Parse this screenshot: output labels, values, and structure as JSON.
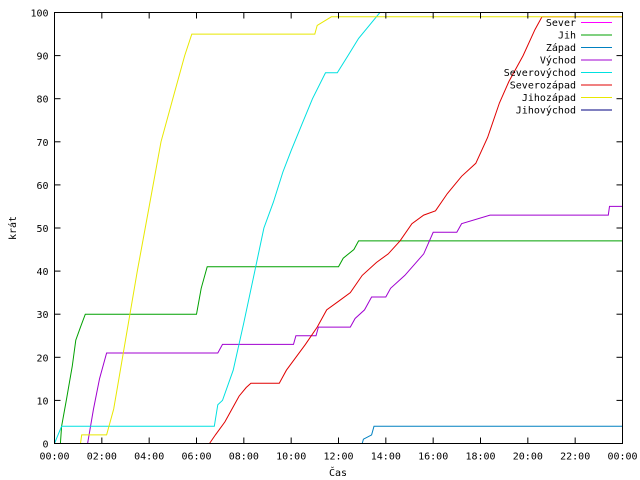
{
  "chart_data": {
    "type": "line",
    "title": "",
    "xlabel": "Čas",
    "ylabel": "krát",
    "xlim": [
      0,
      24
    ],
    "ylim": [
      0,
      100
    ],
    "x_ticks": [
      {
        "value": 0,
        "label": "00:00"
      },
      {
        "value": 2,
        "label": "02:00"
      },
      {
        "value": 4,
        "label": "04:00"
      },
      {
        "value": 6,
        "label": "06:00"
      },
      {
        "value": 8,
        "label": "08:00"
      },
      {
        "value": 10,
        "label": "10:00"
      },
      {
        "value": 12,
        "label": "12:00"
      },
      {
        "value": 14,
        "label": "14:00"
      },
      {
        "value": 16,
        "label": "16:00"
      },
      {
        "value": 18,
        "label": "18:00"
      },
      {
        "value": 20,
        "label": "20:00"
      },
      {
        "value": 22,
        "label": "22:00"
      },
      {
        "value": 24,
        "label": "00:00"
      }
    ],
    "y_ticks": [
      0,
      10,
      20,
      30,
      40,
      50,
      60,
      70,
      80,
      90,
      100
    ],
    "grid": false,
    "legend_position": "top-right",
    "series": [
      {
        "name": "Sever",
        "color": "#ff00ff",
        "points": []
      },
      {
        "name": "Jih",
        "color": "#00a000",
        "points": [
          [
            0,
            0
          ],
          [
            0.25,
            0
          ],
          [
            0.3,
            4
          ],
          [
            0.5,
            10
          ],
          [
            0.75,
            18
          ],
          [
            0.9,
            24
          ],
          [
            1.1,
            27
          ],
          [
            1.3,
            30
          ],
          [
            6,
            30
          ],
          [
            6.2,
            36
          ],
          [
            6.45,
            41
          ],
          [
            12,
            41
          ],
          [
            12.2,
            43
          ],
          [
            12.65,
            45
          ],
          [
            12.85,
            47
          ],
          [
            24,
            47
          ]
        ]
      },
      {
        "name": "Západ",
        "color": "#0080c0",
        "points": [
          [
            13,
            0
          ],
          [
            13.05,
            1
          ],
          [
            13.4,
            2
          ],
          [
            13.5,
            4
          ],
          [
            24,
            4
          ]
        ]
      },
      {
        "name": "Východ",
        "color": "#a000d0",
        "points": [
          [
            1.4,
            0
          ],
          [
            1.65,
            8
          ],
          [
            1.9,
            15
          ],
          [
            2.2,
            21
          ],
          [
            6.9,
            21
          ],
          [
            7.1,
            23
          ],
          [
            10.1,
            23
          ],
          [
            10.2,
            25
          ],
          [
            11.05,
            25
          ],
          [
            11.15,
            27
          ],
          [
            12.5,
            27
          ],
          [
            12.7,
            29
          ],
          [
            13.1,
            31
          ],
          [
            13.4,
            34
          ],
          [
            14,
            34
          ],
          [
            14.2,
            36
          ],
          [
            14.8,
            39
          ],
          [
            15.6,
            44
          ],
          [
            16,
            49
          ],
          [
            17,
            49
          ],
          [
            17.2,
            51
          ],
          [
            18.4,
            53
          ],
          [
            23.4,
            53
          ],
          [
            23.45,
            55
          ],
          [
            24,
            55
          ]
        ]
      },
      {
        "name": "Severovýchod",
        "color": "#00e0e0",
        "points": [
          [
            0,
            0
          ],
          [
            0.15,
            2
          ],
          [
            0.3,
            4
          ],
          [
            6.75,
            4
          ],
          [
            6.9,
            9
          ],
          [
            7.1,
            10
          ],
          [
            7.55,
            17
          ],
          [
            8,
            28
          ],
          [
            8.5,
            41
          ],
          [
            8.85,
            50
          ],
          [
            9.25,
            56
          ],
          [
            9.65,
            63
          ],
          [
            10,
            68
          ],
          [
            10.45,
            74
          ],
          [
            10.9,
            80
          ],
          [
            11.45,
            86
          ],
          [
            11.95,
            86
          ],
          [
            12.4,
            90
          ],
          [
            12.85,
            94
          ],
          [
            13.3,
            97
          ],
          [
            13.75,
            100
          ],
          [
            24,
            100
          ]
        ]
      },
      {
        "name": "Severozápad",
        "color": "#e00000",
        "points": [
          [
            6.55,
            0
          ],
          [
            6.8,
            2
          ],
          [
            7.2,
            5
          ],
          [
            7.5,
            8
          ],
          [
            7.8,
            11
          ],
          [
            8.1,
            13
          ],
          [
            8.3,
            14
          ],
          [
            9.5,
            14
          ],
          [
            9.8,
            17
          ],
          [
            10.2,
            20
          ],
          [
            10.6,
            23
          ],
          [
            11.1,
            27
          ],
          [
            11.5,
            31
          ],
          [
            12,
            33
          ],
          [
            12.5,
            35
          ],
          [
            13,
            39
          ],
          [
            13.6,
            42
          ],
          [
            14.1,
            44
          ],
          [
            14.6,
            47
          ],
          [
            15.1,
            51
          ],
          [
            15.6,
            53
          ],
          [
            16.1,
            54
          ],
          [
            16.6,
            58
          ],
          [
            17.2,
            62
          ],
          [
            17.8,
            65
          ],
          [
            18.3,
            71
          ],
          [
            18.8,
            79
          ],
          [
            19.2,
            84
          ],
          [
            19.8,
            90
          ],
          [
            20.3,
            96
          ],
          [
            20.6,
            99
          ],
          [
            24,
            99
          ]
        ]
      },
      {
        "name": "Jihozápad",
        "color": "#e8e800",
        "points": [
          [
            1.1,
            0
          ],
          [
            1.15,
            2
          ],
          [
            2.2,
            2
          ],
          [
            2.5,
            8
          ],
          [
            3,
            24
          ],
          [
            3.5,
            40
          ],
          [
            4,
            55
          ],
          [
            4.5,
            70
          ],
          [
            5,
            80
          ],
          [
            5.5,
            90
          ],
          [
            5.8,
            95
          ],
          [
            11,
            95
          ],
          [
            11.1,
            97
          ],
          [
            11.7,
            99
          ],
          [
            24,
            99
          ]
        ]
      },
      {
        "name": "Jihovýchod",
        "color": "#000080",
        "points": []
      }
    ]
  }
}
